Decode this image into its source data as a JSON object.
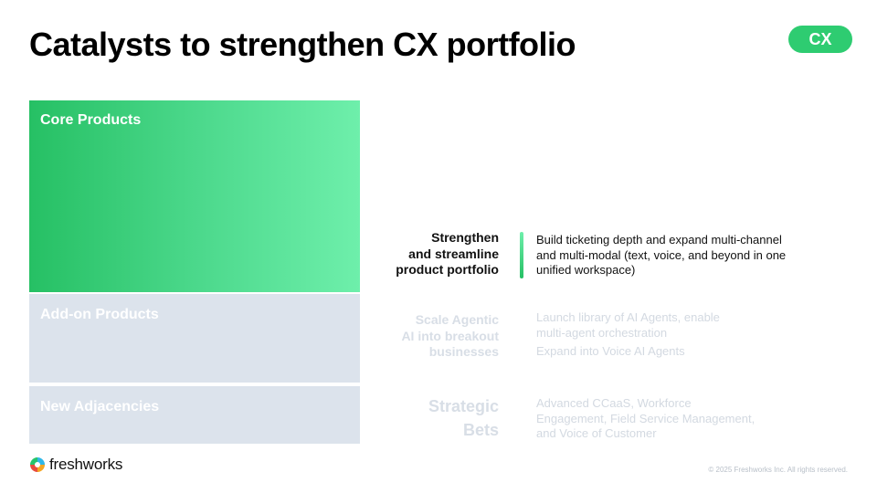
{
  "title": "Catalysts to strengthen CX portfolio",
  "badge": "CX",
  "blocks": {
    "core": "Core Products",
    "addon": "Add-on Products",
    "new": "New Adjacencies"
  },
  "rows": {
    "strengthen": {
      "label": "Strengthen\nand streamline\nproduct portfolio",
      "desc": "Build ticketing depth and expand multi-channel\nand multi-modal (text, voice, and beyond in one\nunified workspace)"
    },
    "scale": {
      "label": "Scale Agentic\nAI into breakout\nbusinesses",
      "desc1": "Launch library of AI Agents, enable\nmulti-agent orchestration",
      "desc2": "Expand into Voice AI Agents"
    },
    "strategic": {
      "label": "Strategic\nBets",
      "desc": "Advanced CCaaS, Workforce\nEngagement, Field Service Management,\nand Voice of Customer"
    }
  },
  "footer": {
    "logo_text": "freshworks",
    "copyright": "© 2025 Freshworks Inc. All rights reserved."
  },
  "colors": {
    "accent": "#2ecc71",
    "faded_block": "#dce3ec"
  }
}
